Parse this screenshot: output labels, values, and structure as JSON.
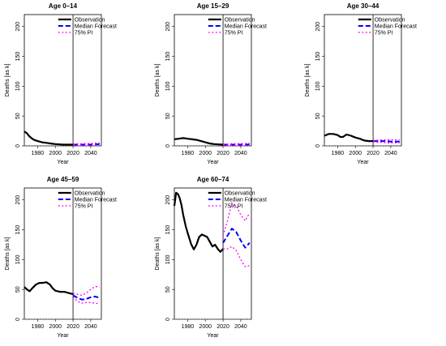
{
  "chart_data": [
    {
      "type": "line",
      "title": "Age 0–14",
      "xlabel": "Year",
      "ylabel": "Deaths [as k]",
      "xlim": [
        1965,
        2052
      ],
      "ylim": [
        0,
        220
      ],
      "xticks": [
        "1980",
        "2000",
        "2020",
        "2040"
      ],
      "yticks": [
        "0",
        "50",
        "100",
        "150",
        "200"
      ],
      "vline": 2020,
      "legend": {
        "position": "top-right",
        "entries": [
          "Observation",
          "Median Forecast",
          "75% PI"
        ]
      },
      "series": [
        {
          "name": "Observation",
          "color": "#000000",
          "style": "solid",
          "x": [
            1965,
            1968,
            1970,
            1973,
            1976,
            1980,
            1985,
            1990,
            1995,
            2000,
            2005,
            2010,
            2015,
            2020
          ],
          "y": [
            24,
            21,
            17,
            13,
            10,
            8,
            6,
            5,
            4,
            3,
            2.5,
            2,
            2,
            2
          ]
        },
        {
          "name": "Median Forecast",
          "color": "#0000ff",
          "style": "dashed",
          "x": [
            2020,
            2025,
            2030,
            2035,
            2040,
            2045,
            2050
          ],
          "y": [
            2,
            2,
            2,
            2,
            2,
            2.5,
            3
          ]
        },
        {
          "name": "75% PI",
          "color": "#ff00ff",
          "style": "dotted",
          "x": [
            2020,
            2025,
            2030,
            2035,
            2040,
            2045,
            2050
          ],
          "y": [
            3,
            3.5,
            3.5,
            4,
            4,
            4.5,
            5
          ]
        },
        {
          "name": "75% PI",
          "color": "#ff00ff",
          "style": "dotted",
          "x": [
            2020,
            2025,
            2030,
            2035,
            2040,
            2045,
            2050
          ],
          "y": [
            1.5,
            1,
            1,
            1,
            1,
            1,
            1
          ]
        }
      ]
    },
    {
      "type": "line",
      "title": "Age 15–29",
      "xlabel": "Year",
      "ylabel": "Deaths [as k]",
      "xlim": [
        1965,
        2052
      ],
      "ylim": [
        0,
        220
      ],
      "xticks": [
        "1980",
        "2000",
        "2020",
        "2040"
      ],
      "yticks": [
        "0",
        "50",
        "100",
        "150",
        "200"
      ],
      "vline": 2020,
      "legend": {
        "position": "top-right",
        "entries": [
          "Observation",
          "Median Forecast",
          "75% PI"
        ]
      },
      "series": [
        {
          "name": "Observation",
          "color": "#000000",
          "style": "solid",
          "x": [
            1965,
            1970,
            1975,
            1980,
            1985,
            1990,
            1995,
            2000,
            2005,
            2010,
            2015,
            2020
          ],
          "y": [
            11,
            12,
            13,
            12,
            11,
            10,
            8,
            6,
            4,
            3,
            2.5,
            2
          ]
        },
        {
          "name": "Median Forecast",
          "color": "#0000ff",
          "style": "dashed",
          "x": [
            2020,
            2025,
            2030,
            2035,
            2040,
            2045,
            2050
          ],
          "y": [
            2,
            2,
            2,
            2,
            2,
            2,
            2.5
          ]
        },
        {
          "name": "75% PI",
          "color": "#ff00ff",
          "style": "dotted",
          "x": [
            2020,
            2025,
            2030,
            2035,
            2040,
            2045,
            2050
          ],
          "y": [
            3,
            3,
            3.5,
            3.5,
            4,
            4,
            4.5
          ]
        },
        {
          "name": "75% PI",
          "color": "#ff00ff",
          "style": "dotted",
          "x": [
            2020,
            2025,
            2030,
            2035,
            2040,
            2045,
            2050
          ],
          "y": [
            1.5,
            1,
            1,
            1,
            1,
            1,
            1
          ]
        }
      ]
    },
    {
      "type": "line",
      "title": "Age 30–44",
      "xlabel": "Year",
      "ylabel": "Deaths [as k]",
      "xlim": [
        1965,
        2052
      ],
      "ylim": [
        0,
        220
      ],
      "xticks": [
        "1980",
        "2000",
        "2020",
        "2040"
      ],
      "yticks": [
        "0",
        "50",
        "100",
        "150",
        "200"
      ],
      "vline": 2020,
      "legend": {
        "position": "top-right",
        "entries": [
          "Observation",
          "Median Forecast",
          "75% PI"
        ]
      },
      "series": [
        {
          "name": "Observation",
          "color": "#000000",
          "style": "solid",
          "x": [
            1965,
            1970,
            1975,
            1980,
            1983,
            1986,
            1990,
            1995,
            2000,
            2005,
            2010,
            2015,
            2020
          ],
          "y": [
            17,
            20,
            20,
            18,
            15,
            15,
            19,
            17,
            14,
            12,
            9,
            8,
            8
          ]
        },
        {
          "name": "Median Forecast",
          "color": "#0000ff",
          "style": "dashed",
          "x": [
            2020,
            2025,
            2030,
            2035,
            2040,
            2045,
            2050
          ],
          "y": [
            8,
            8,
            8,
            8,
            7,
            7,
            7
          ]
        },
        {
          "name": "75% PI",
          "color": "#ff00ff",
          "style": "dotted",
          "x": [
            2020,
            2025,
            2030,
            2035,
            2040,
            2045,
            2050
          ],
          "y": [
            9,
            9.5,
            10,
            10,
            10,
            10,
            10
          ]
        },
        {
          "name": "75% PI",
          "color": "#ff00ff",
          "style": "dotted",
          "x": [
            2020,
            2025,
            2030,
            2035,
            2040,
            2045,
            2050
          ],
          "y": [
            7,
            6,
            6,
            5,
            5,
            5,
            5
          ]
        }
      ]
    },
    {
      "type": "line",
      "title": "Age 45–59",
      "xlabel": "Year",
      "ylabel": "Deaths [as k]",
      "xlim": [
        1965,
        2052
      ],
      "ylim": [
        0,
        220
      ],
      "xticks": [
        "1980",
        "2000",
        "2020",
        "2040"
      ],
      "yticks": [
        "0",
        "50",
        "100",
        "150",
        "200"
      ],
      "vline": 2020,
      "legend": {
        "position": "top-right",
        "entries": [
          "Observation",
          "Median Forecast",
          "75% PI"
        ]
      },
      "series": [
        {
          "name": "Observation",
          "color": "#000000",
          "style": "solid",
          "x": [
            1965,
            1968,
            1971,
            1974,
            1978,
            1982,
            1986,
            1990,
            1994,
            1997,
            2000,
            2005,
            2010,
            2015,
            2020
          ],
          "y": [
            54,
            50,
            47,
            52,
            58,
            61,
            61,
            62,
            58,
            52,
            48,
            46,
            46,
            44,
            42
          ]
        },
        {
          "name": "Median Forecast",
          "color": "#0000ff",
          "style": "dashed",
          "x": [
            2020,
            2025,
            2030,
            2035,
            2040,
            2045,
            2050
          ],
          "y": [
            40,
            36,
            33,
            34,
            37,
            38,
            36
          ]
        },
        {
          "name": "75% PI",
          "color": "#ff00ff",
          "style": "dotted",
          "x": [
            2020,
            2025,
            2030,
            2035,
            2040,
            2045,
            2050
          ],
          "y": [
            43,
            42,
            40,
            44,
            50,
            55,
            54
          ]
        },
        {
          "name": "75% PI",
          "color": "#ff00ff",
          "style": "dotted",
          "x": [
            2020,
            2025,
            2030,
            2035,
            2040,
            2045,
            2050
          ],
          "y": [
            38,
            30,
            27,
            28,
            28,
            27,
            26
          ]
        }
      ]
    },
    {
      "type": "line",
      "title": "Age 60–74",
      "xlabel": "Year",
      "ylabel": "Deaths [as k]",
      "xlim": [
        1965,
        2052
      ],
      "ylim": [
        0,
        220
      ],
      "xticks": [
        "1980",
        "2000",
        "2020",
        "2040"
      ],
      "yticks": [
        "0",
        "50",
        "100",
        "150",
        "200"
      ],
      "vline": 2020,
      "legend": {
        "position": "top-right",
        "entries": [
          "Observation",
          "Median Forecast",
          "75% PI"
        ]
      },
      "series": [
        {
          "name": "Observation",
          "color": "#000000",
          "style": "solid",
          "x": [
            1965,
            1967,
            1969,
            1971,
            1973,
            1975,
            1978,
            1981,
            1984,
            1987,
            1990,
            1993,
            1996,
            1999,
            2002,
            2005,
            2008,
            2011,
            2014,
            2017,
            2020
          ],
          "y": [
            190,
            212,
            210,
            203,
            192,
            175,
            155,
            140,
            126,
            117,
            125,
            138,
            142,
            140,
            138,
            130,
            122,
            125,
            118,
            113,
            118
          ]
        },
        {
          "name": "Median Forecast",
          "color": "#0000ff",
          "style": "dashed",
          "x": [
            2020,
            2025,
            2030,
            2035,
            2040,
            2045,
            2050
          ],
          "y": [
            128,
            140,
            152,
            146,
            132,
            120,
            128
          ]
        },
        {
          "name": "75% PI",
          "color": "#ff00ff",
          "style": "dotted",
          "x": [
            2020,
            2025,
            2030,
            2035,
            2040,
            2045,
            2050
          ],
          "y": [
            140,
            165,
            195,
            190,
            175,
            165,
            178
          ]
        },
        {
          "name": "75% PI",
          "color": "#ff00ff",
          "style": "dotted",
          "x": [
            2020,
            2025,
            2030,
            2035,
            2040,
            2045,
            2050
          ],
          "y": [
            118,
            118,
            122,
            115,
            100,
            88,
            90
          ]
        }
      ]
    }
  ]
}
